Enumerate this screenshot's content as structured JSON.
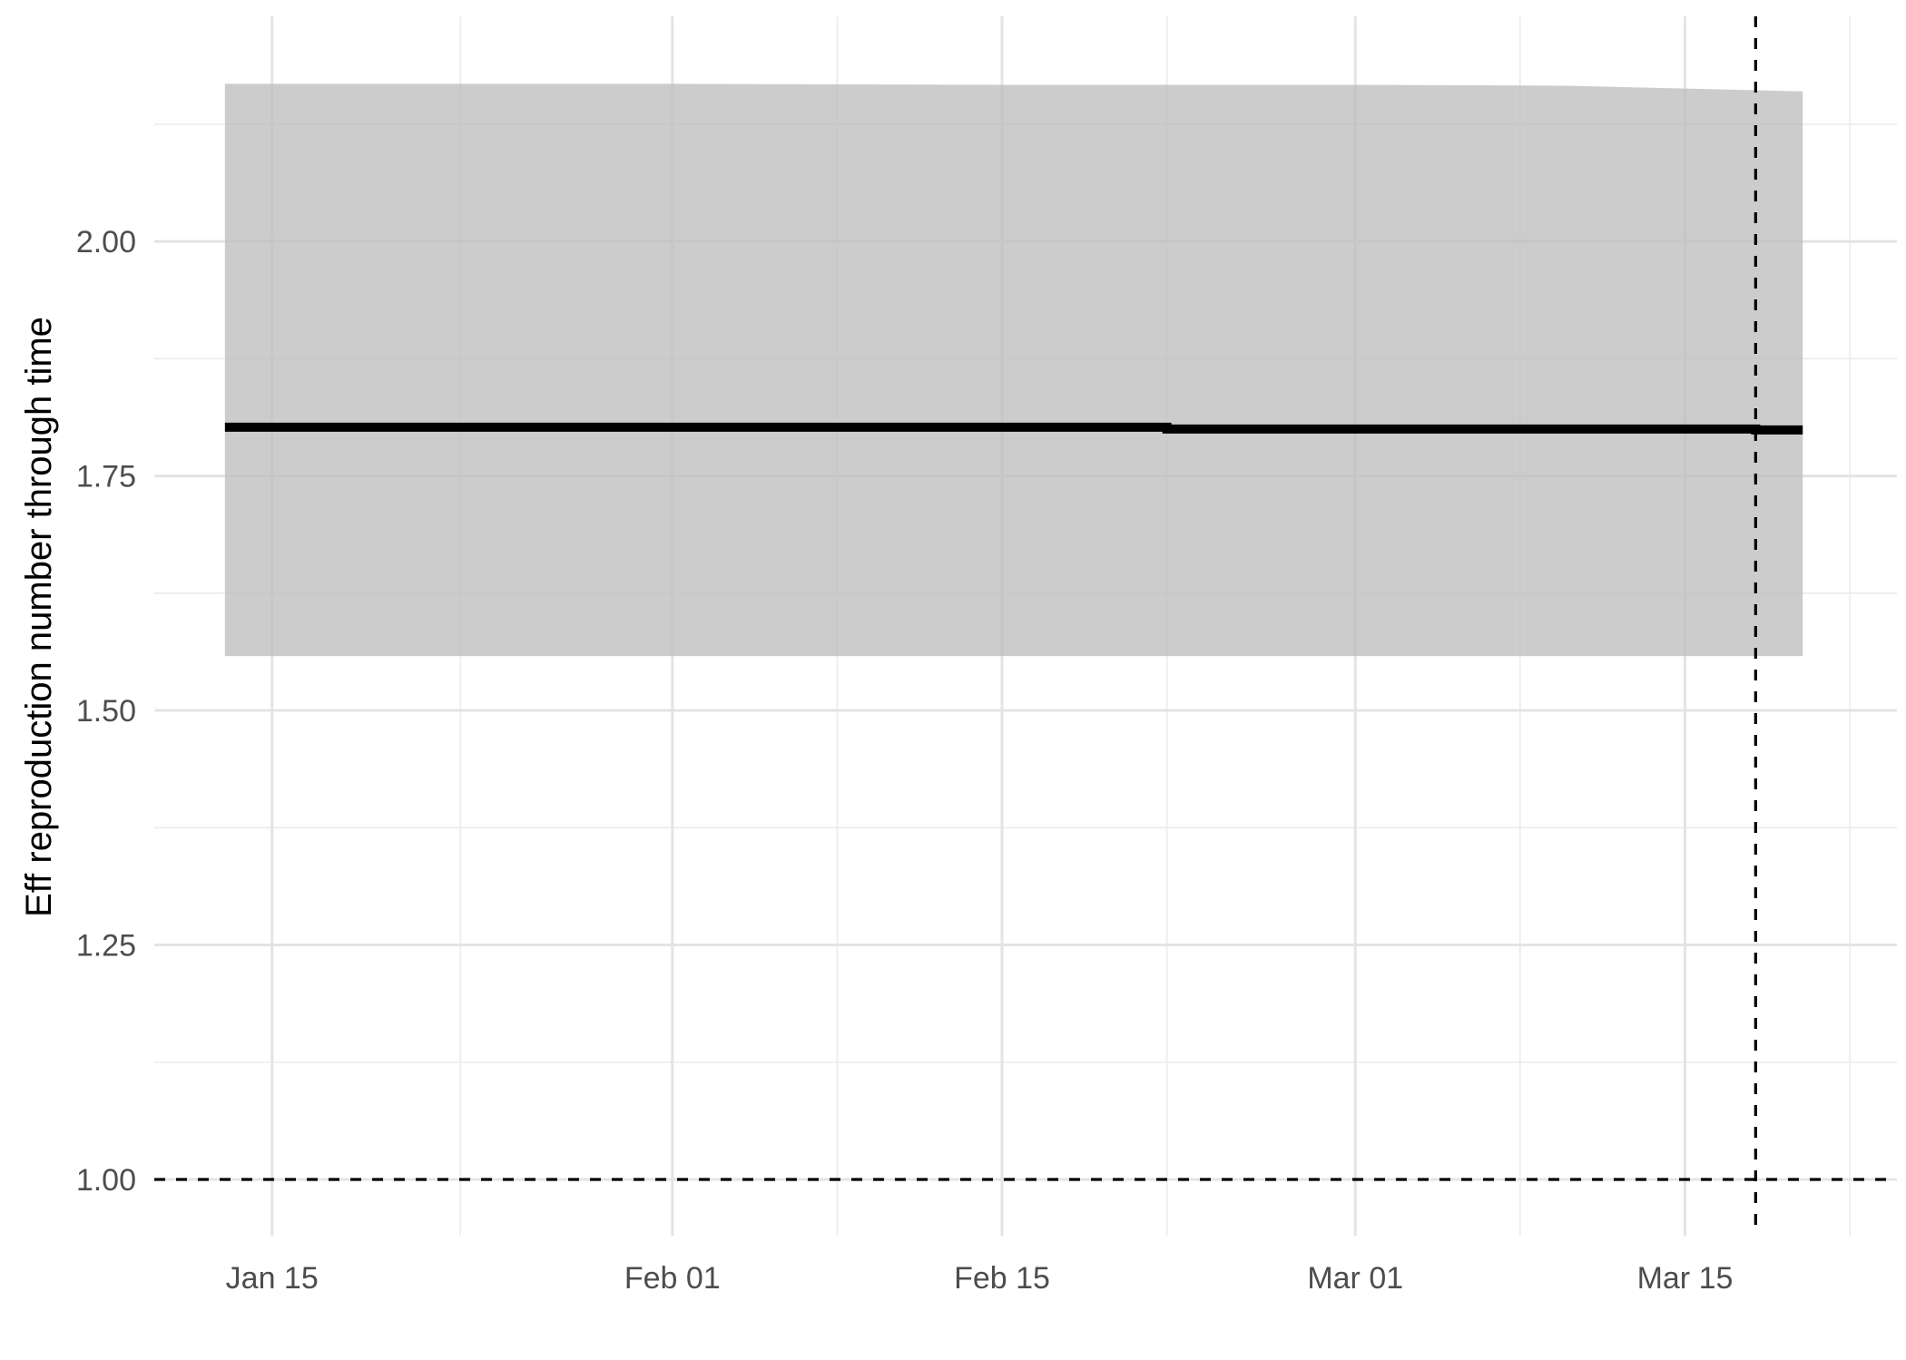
{
  "chart_data": {
    "type": "line",
    "title": "",
    "xlabel": "",
    "ylabel": "Eff reproduction number through time",
    "x_axis_type": "date",
    "year_assumed": 2020,
    "xlim": [
      "2020-01-10",
      "2020-03-24"
    ],
    "ylim": [
      0.94,
      2.24
    ],
    "x_ticks": [
      {
        "date": "2020-01-15",
        "label": "Jan 15"
      },
      {
        "date": "2020-02-01",
        "label": "Feb 01"
      },
      {
        "date": "2020-02-15",
        "label": "Feb 15"
      },
      {
        "date": "2020-03-01",
        "label": "Mar 01"
      },
      {
        "date": "2020-03-15",
        "label": "Mar 15"
      }
    ],
    "x_minor_ticks": [
      "2020-01-23",
      "2020-02-08",
      "2020-02-22",
      "2020-03-08",
      "2020-03-22"
    ],
    "y_ticks": [
      {
        "value": 1.0,
        "label": "1.00"
      },
      {
        "value": 1.25,
        "label": "1.25"
      },
      {
        "value": 1.5,
        "label": "1.50"
      },
      {
        "value": 1.75,
        "label": "1.75"
      },
      {
        "value": 2.0,
        "label": "2.00"
      }
    ],
    "y_minor_ticks": [
      1.125,
      1.375,
      1.625,
      1.875,
      2.125
    ],
    "grid": true,
    "series": [
      {
        "name": "",
        "color": "#000000",
        "points": [
          {
            "x": "2020-01-13",
            "y": 1.802
          },
          {
            "x": "2020-02-22",
            "y": 1.802
          },
          {
            "x": "2020-02-22",
            "y": 1.8
          },
          {
            "x": "2020-03-18",
            "y": 1.8
          },
          {
            "x": "2020-03-18",
            "y": 1.799
          },
          {
            "x": "2020-03-20",
            "y": 1.799
          }
        ]
      }
    ],
    "ribbon": {
      "fill": "#bebebe",
      "opacity": 0.78,
      "points": [
        {
          "x": "2020-01-13",
          "lower": 1.558,
          "upper": 2.168
        },
        {
          "x": "2020-02-01",
          "lower": 1.558,
          "upper": 2.168
        },
        {
          "x": "2020-02-15",
          "lower": 1.558,
          "upper": 2.167
        },
        {
          "x": "2020-03-01",
          "lower": 1.558,
          "upper": 2.167
        },
        {
          "x": "2020-03-10",
          "lower": 1.558,
          "upper": 2.166
        },
        {
          "x": "2020-03-20",
          "lower": 1.558,
          "upper": 2.16
        }
      ]
    },
    "reference_lines": [
      {
        "orientation": "horizontal",
        "value": 1.0,
        "style": "dashed",
        "color": "#000000"
      },
      {
        "orientation": "vertical",
        "value": "2020-03-18",
        "style": "dashed",
        "color": "#000000"
      }
    ],
    "legend": "none"
  }
}
